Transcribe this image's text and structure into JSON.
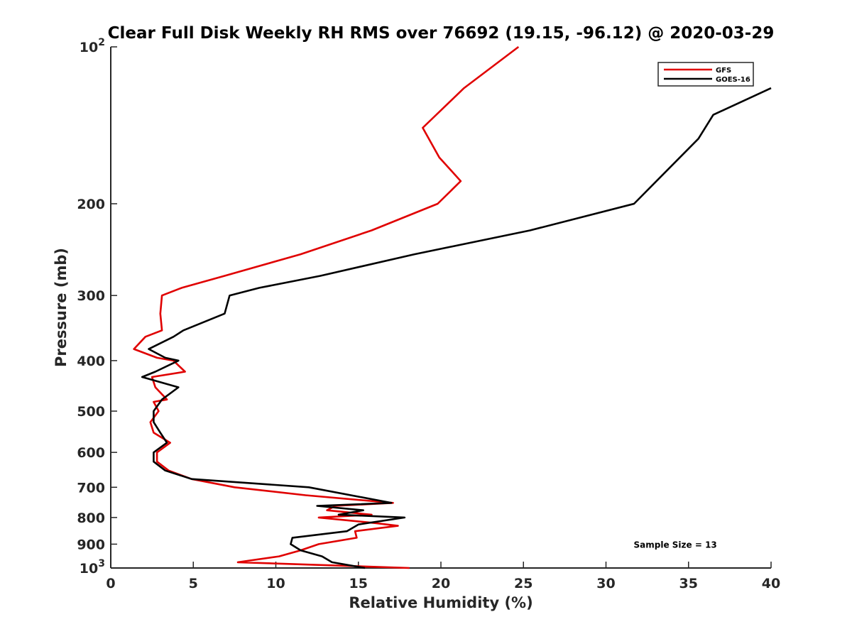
{
  "chart_data": {
    "type": "line",
    "title": "Clear Full Disk Weekly RH RMS over 76692 (19.15, -96.12) @ 2020-03-29",
    "xlabel": "Relative Humidity (%)",
    "ylabel": "Pressure (mb)",
    "xlim": [
      0,
      40
    ],
    "ylim": [
      100,
      1000
    ],
    "yscale": "log",
    "y_reversed": true,
    "x_ticks": [
      0,
      5,
      10,
      15,
      20,
      25,
      30,
      35,
      40
    ],
    "y_ticks": [
      {
        "value": 100,
        "base": "10",
        "exp": "2"
      },
      {
        "value": 200,
        "label": "200"
      },
      {
        "value": 300,
        "label": "300"
      },
      {
        "value": 400,
        "label": "400"
      },
      {
        "value": 500,
        "label": "500"
      },
      {
        "value": 600,
        "label": "600"
      },
      {
        "value": 700,
        "label": "700"
      },
      {
        "value": 800,
        "label": "800"
      },
      {
        "value": 900,
        "label": "900"
      },
      {
        "value": 1000,
        "base": "10",
        "exp": "3"
      }
    ],
    "legend_position": "top-right",
    "series": [
      {
        "name": "GFS",
        "color": "#e00000",
        "points": [
          [
            24.7,
            100
          ],
          [
            21.4,
            120
          ],
          [
            18.9,
            143
          ],
          [
            19.9,
            163
          ],
          [
            21.2,
            181
          ],
          [
            19.8,
            200
          ],
          [
            15.8,
            225
          ],
          [
            11.5,
            250
          ],
          [
            6.9,
            275
          ],
          [
            4.3,
            290
          ],
          [
            3.1,
            300
          ],
          [
            3.0,
            325
          ],
          [
            3.1,
            350
          ],
          [
            2.1,
            360
          ],
          [
            1.4,
            380
          ],
          [
            2.8,
            395
          ],
          [
            3.8,
            400
          ],
          [
            4.5,
            420
          ],
          [
            2.5,
            430
          ],
          [
            2.7,
            450
          ],
          [
            3.4,
            475
          ],
          [
            2.6,
            480
          ],
          [
            2.9,
            500
          ],
          [
            2.4,
            525
          ],
          [
            2.6,
            550
          ],
          [
            3.6,
            575
          ],
          [
            2.8,
            600
          ],
          [
            2.8,
            625
          ],
          [
            3.5,
            650
          ],
          [
            4.9,
            675
          ],
          [
            7.5,
            700
          ],
          [
            11.8,
            725
          ],
          [
            17.1,
            750
          ],
          [
            13.6,
            760
          ],
          [
            13.1,
            775
          ],
          [
            15.8,
            790
          ],
          [
            12.6,
            800
          ],
          [
            16.0,
            820
          ],
          [
            17.4,
            830
          ],
          [
            14.8,
            850
          ],
          [
            14.9,
            875
          ],
          [
            12.6,
            900
          ],
          [
            11.5,
            925
          ],
          [
            10.2,
            950
          ],
          [
            7.7,
            975
          ],
          [
            18.1,
            1000
          ]
        ]
      },
      {
        "name": "GOES-16",
        "color": "#000000",
        "points": [
          [
            40.0,
            120
          ],
          [
            36.5,
            135
          ],
          [
            35.6,
            150
          ],
          [
            31.7,
            200
          ],
          [
            25.4,
            225
          ],
          [
            18.4,
            250
          ],
          [
            12.7,
            275
          ],
          [
            9.0,
            290
          ],
          [
            7.2,
            300
          ],
          [
            6.9,
            325
          ],
          [
            4.4,
            350
          ],
          [
            3.8,
            360
          ],
          [
            2.3,
            380
          ],
          [
            3.3,
            395
          ],
          [
            4.1,
            400
          ],
          [
            2.7,
            420
          ],
          [
            1.9,
            430
          ],
          [
            4.1,
            450
          ],
          [
            3.1,
            475
          ],
          [
            2.6,
            500
          ],
          [
            2.6,
            525
          ],
          [
            3.0,
            550
          ],
          [
            3.4,
            575
          ],
          [
            2.6,
            600
          ],
          [
            2.6,
            625
          ],
          [
            3.3,
            650
          ],
          [
            4.9,
            675
          ],
          [
            12.0,
            700
          ],
          [
            17.0,
            750
          ],
          [
            12.5,
            760
          ],
          [
            15.3,
            775
          ],
          [
            13.8,
            790
          ],
          [
            17.8,
            800
          ],
          [
            15.0,
            825
          ],
          [
            14.3,
            850
          ],
          [
            11.0,
            875
          ],
          [
            10.9,
            900
          ],
          [
            11.5,
            925
          ],
          [
            12.8,
            950
          ],
          [
            13.4,
            975
          ],
          [
            15.4,
            1000
          ]
        ]
      }
    ],
    "annotations": [
      {
        "text": "Sample Size = 13",
        "x": 34.2,
        "y": 900
      }
    ]
  }
}
